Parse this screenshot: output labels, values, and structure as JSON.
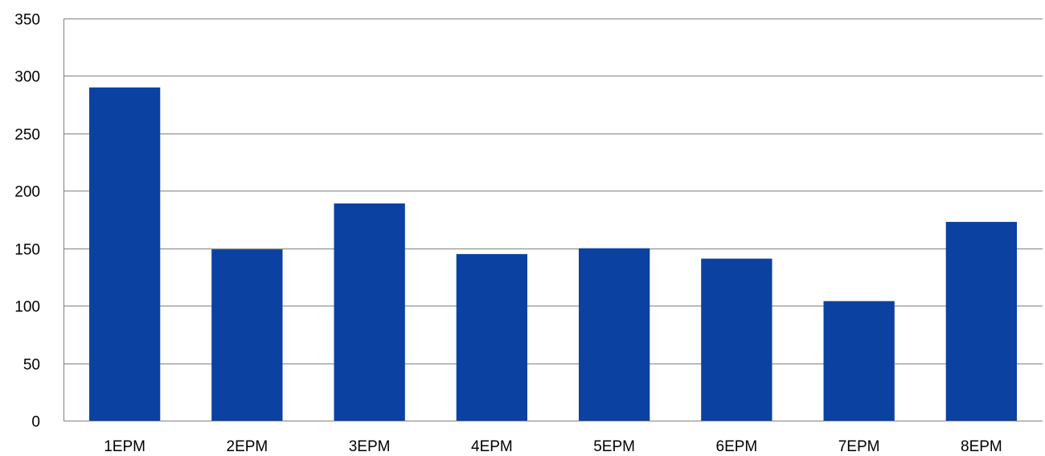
{
  "chart_data": {
    "type": "bar",
    "categories": [
      "1EPM",
      "2EPM",
      "3EPM",
      "4EPM",
      "5EPM",
      "6EPM",
      "7EPM",
      "8EPM"
    ],
    "values": [
      290,
      149,
      189,
      145,
      150,
      141,
      104,
      173
    ],
    "ylim": [
      0,
      350
    ],
    "yticks": [
      "0",
      "50",
      "100",
      "150",
      "200",
      "250",
      "300",
      "350"
    ],
    "title": "",
    "xlabel": "",
    "ylabel": "",
    "grid": true,
    "legend": "none",
    "colors": {
      "bar": "#0B41A0",
      "grid": "#808080",
      "axis": "#808080",
      "text": "#000000"
    }
  }
}
